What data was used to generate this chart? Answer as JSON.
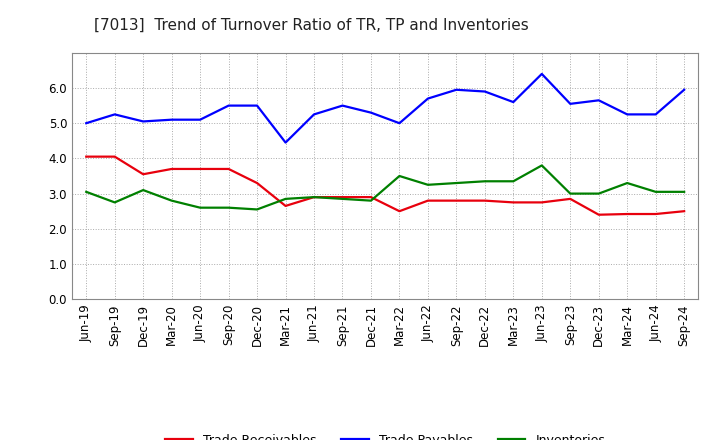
{
  "title": "[7013]  Trend of Turnover Ratio of TR, TP and Inventories",
  "x_labels": [
    "Jun-19",
    "Sep-19",
    "Dec-19",
    "Mar-20",
    "Jun-20",
    "Sep-20",
    "Dec-20",
    "Mar-21",
    "Jun-21",
    "Sep-21",
    "Dec-21",
    "Mar-22",
    "Jun-22",
    "Sep-22",
    "Dec-22",
    "Mar-23",
    "Jun-23",
    "Sep-23",
    "Dec-23",
    "Mar-24",
    "Jun-24",
    "Sep-24"
  ],
  "trade_receivables": [
    4.05,
    4.05,
    3.55,
    3.7,
    3.7,
    3.7,
    3.3,
    2.65,
    2.9,
    2.9,
    2.9,
    2.5,
    2.8,
    2.8,
    2.8,
    2.75,
    2.75,
    2.85,
    2.4,
    2.42,
    2.42,
    2.5
  ],
  "trade_payables": [
    5.0,
    5.25,
    5.05,
    5.1,
    5.1,
    5.5,
    5.5,
    4.45,
    5.25,
    5.5,
    5.3,
    5.0,
    5.7,
    5.95,
    5.9,
    5.6,
    6.4,
    5.55,
    5.65,
    5.25,
    5.25,
    5.95
  ],
  "inventories": [
    3.05,
    2.75,
    3.1,
    2.8,
    2.6,
    2.6,
    2.55,
    2.85,
    2.9,
    2.85,
    2.8,
    3.5,
    3.25,
    3.3,
    3.35,
    3.35,
    3.8,
    3.0,
    3.0,
    3.3,
    3.05,
    3.05
  ],
  "tr_color": "#e8000d",
  "tp_color": "#0000ff",
  "inv_color": "#008000",
  "ylim": [
    0.0,
    7.0
  ],
  "yticks": [
    0.0,
    1.0,
    2.0,
    3.0,
    4.0,
    5.0,
    6.0
  ],
  "legend_labels": [
    "Trade Receivables",
    "Trade Payables",
    "Inventories"
  ],
  "background_color": "#ffffff",
  "grid_color": "#aaaaaa",
  "line_width": 1.6,
  "title_fontsize": 11,
  "tick_fontsize": 8.5,
  "legend_fontsize": 9
}
